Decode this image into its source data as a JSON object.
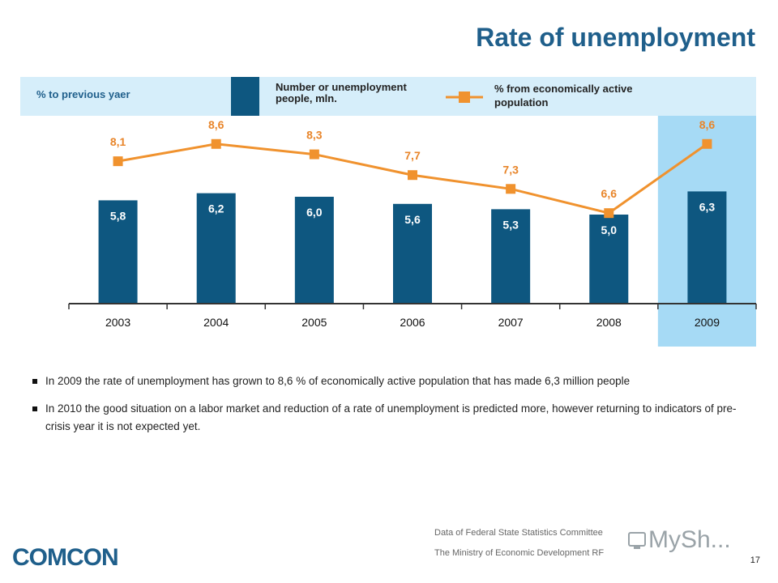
{
  "title": "Rate of unemployment",
  "legend": {
    "left_label": "% to previous yaer",
    "bar_label": "Number or unemployment people, mln.",
    "line_label": "% from economically active population"
  },
  "chart_data": {
    "type": "bar",
    "categories": [
      "2003",
      "2004",
      "2005",
      "2006",
      "2007",
      "2008",
      "2009"
    ],
    "series": [
      {
        "name": "Number or unemployment people, mln.",
        "type": "bar",
        "values": [
          5.8,
          6.2,
          6.0,
          5.6,
          5.3,
          5.0,
          6.3
        ],
        "labels": [
          "5,8",
          "6,2",
          "6,0",
          "5,6",
          "5,3",
          "5,0",
          "6,3"
        ]
      },
      {
        "name": "% from economically active population",
        "type": "line",
        "values": [
          8.1,
          8.6,
          8.3,
          7.7,
          7.3,
          6.6,
          8.6
        ],
        "labels": [
          "8,1",
          "8,6",
          "8,3",
          "7,7",
          "7,3",
          "6,6",
          "8,6"
        ]
      }
    ],
    "highlight_category": "2009",
    "colors": {
      "bar": "#0e5780",
      "line": "#f0922e",
      "highlight": "#a6daf5",
      "line_label": "#e8852a"
    }
  },
  "bullets": [
    "In 2009 the rate of unemployment has grown to 8,6 % of economically active population that has made 6,3 million people",
    " In 2010 the good situation on a labor market and reduction of a rate of unemployment is predicted more, however returning to indicators of pre-crisis year it is not expected yet."
  ],
  "sources": [
    "Data of Federal State Statistics Committee",
    "The Ministry of Economic Development RF"
  ],
  "logos": {
    "left": "COMCON",
    "right": "MySh..."
  },
  "page_number": "17"
}
